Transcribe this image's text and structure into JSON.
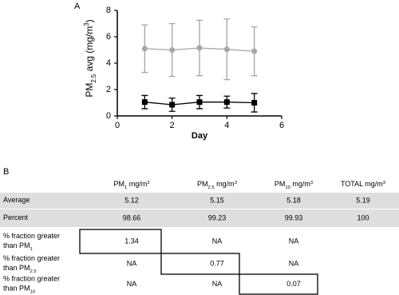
{
  "chart_data": {
    "type": "line",
    "panel_label": "A",
    "ylabel": [
      {
        "text": "PM"
      },
      {
        "text": "2.5",
        "sub": true
      },
      {
        "text": " avg (mg/m"
      },
      {
        "text": "3",
        "sup": true
      },
      {
        "text": ")"
      }
    ],
    "xlabel": "Day",
    "x": [
      1,
      2,
      3,
      4,
      5
    ],
    "series": [
      {
        "color": "#a6a6a6",
        "marker": "circle",
        "values": [
          5.1,
          5.0,
          5.15,
          5.05,
          4.9
        ],
        "errors": [
          1.8,
          2.0,
          2.1,
          2.3,
          1.85
        ]
      },
      {
        "color": "#000000",
        "marker": "square",
        "values": [
          1.05,
          0.85,
          1.05,
          1.05,
          1.0
        ],
        "errors": [
          0.5,
          0.5,
          0.5,
          0.45,
          0.7
        ]
      }
    ],
    "xlim": [
      0,
      6
    ],
    "xticks": [
      0,
      2,
      4,
      6
    ],
    "ylim": [
      0,
      8
    ],
    "yticks": [
      0,
      2,
      4,
      6,
      8
    ]
  },
  "table": {
    "label": "B",
    "columns": [
      [
        {
          "text": "PM"
        },
        {
          "text": "1",
          "sub": true
        },
        {
          "text": " mg/m"
        },
        {
          "text": "3",
          "sup": true
        }
      ],
      [
        {
          "text": "PM"
        },
        {
          "text": "2.5",
          "sub": true
        },
        {
          "text": " mg/m"
        },
        {
          "text": "3",
          "sup": true
        }
      ],
      [
        {
          "text": "PM"
        },
        {
          "text": "10",
          "sub": true
        },
        {
          "text": " mg/m"
        },
        {
          "text": "3",
          "sup": true
        }
      ],
      [
        {
          "text": "TOTAL mg/m"
        },
        {
          "text": "3",
          "sup": true
        }
      ]
    ],
    "rows": [
      {
        "label": [
          [
            {
              "text": "Average"
            }
          ]
        ],
        "cells": [
          "5.12",
          "5.15",
          "5.18",
          "5.19"
        ],
        "shaded": true
      },
      {
        "label": [
          [
            {
              "text": "Percent"
            }
          ]
        ],
        "cells": [
          "98.66",
          "99.23",
          "99.93",
          "100"
        ],
        "shaded": true
      },
      {
        "label": [
          [
            {
              "text": "% fraction greater"
            }
          ],
          [
            {
              "text": "than PM"
            },
            {
              "text": "1",
              "sub": true
            }
          ]
        ],
        "cells": [
          "1.34",
          "NA",
          "NA"
        ],
        "boxed": 0
      },
      {
        "label": [
          [
            {
              "text": "% fraction greater"
            }
          ],
          [
            {
              "text": "than PM"
            },
            {
              "text": "2.5",
              "sub": true
            }
          ]
        ],
        "cells": [
          "NA",
          "0.77",
          "NA"
        ],
        "boxed": 1
      },
      {
        "label": [
          [
            {
              "text": "% fraction greater"
            }
          ],
          [
            {
              "text": "than PM"
            },
            {
              "text": "10",
              "sub": true
            }
          ]
        ],
        "cells": [
          "NA",
          "NA",
          "0.07"
        ],
        "boxed": 2
      }
    ]
  }
}
